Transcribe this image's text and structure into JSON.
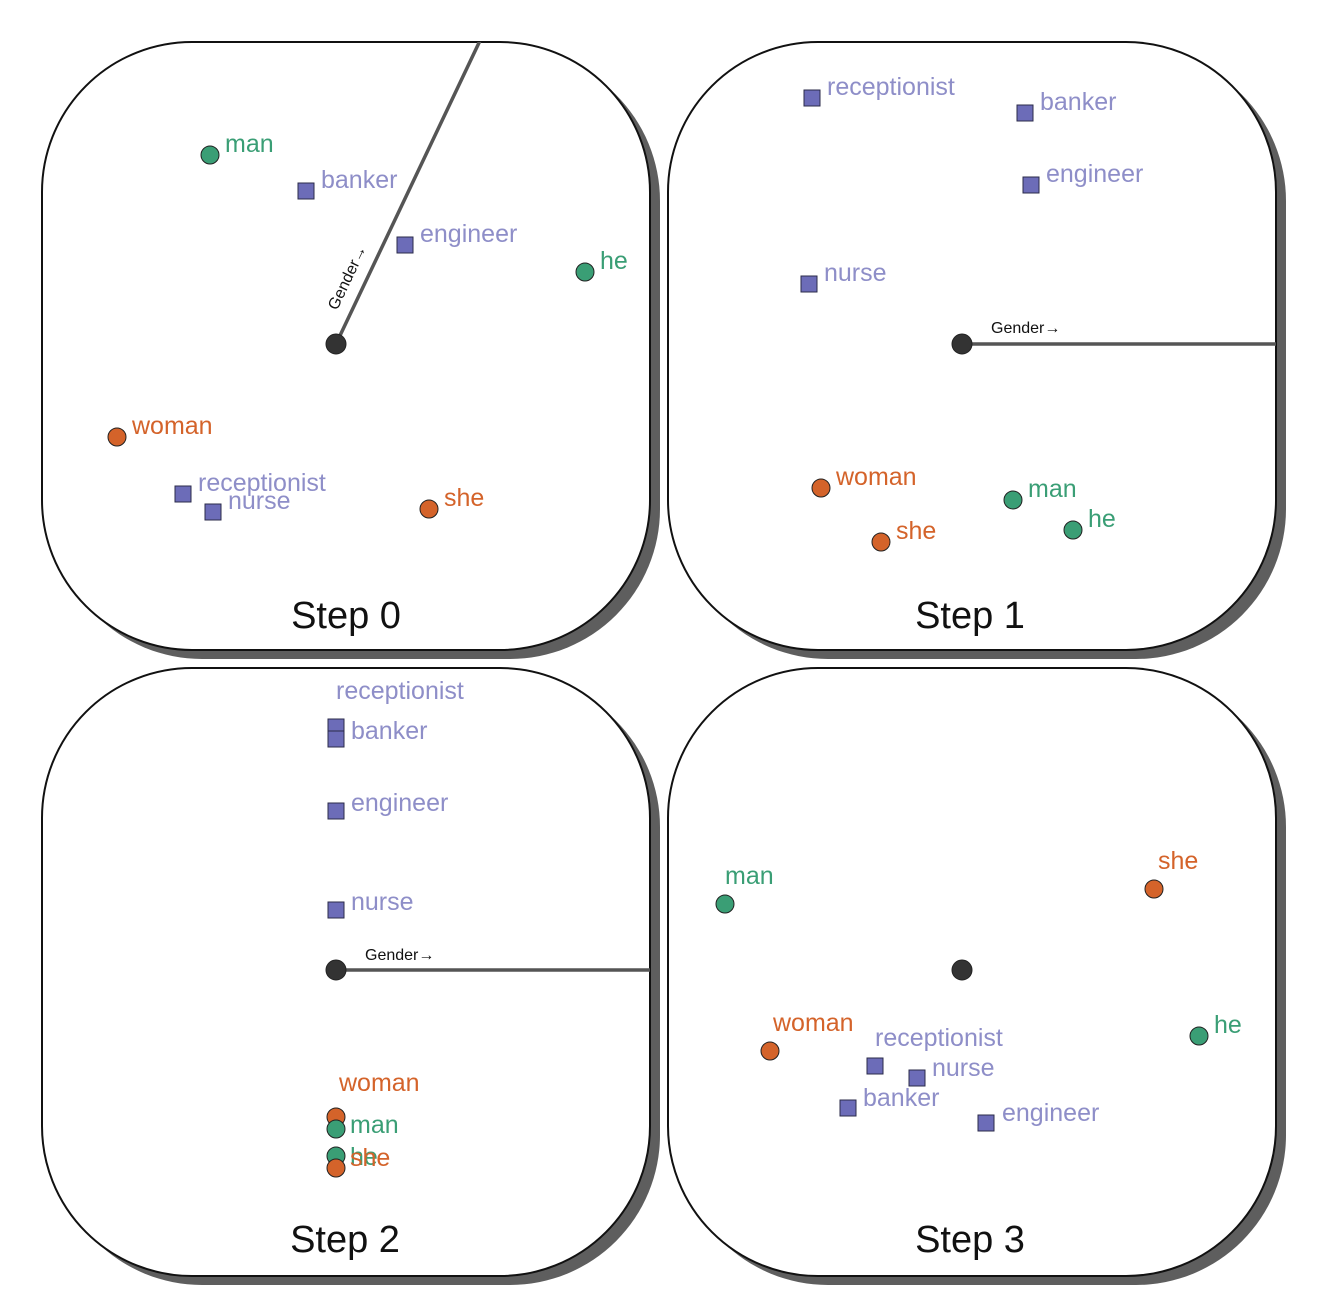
{
  "colors": {
    "male": "#3a9e75",
    "female": "#d4632a",
    "occupation": "#6c6cb8",
    "occupation_text": "#8e8ec8",
    "origin": "#333333",
    "axis": "#555555"
  },
  "axis_label": "Gender→",
  "panels": [
    {
      "title": "Step 0",
      "axis_direction": "up-right",
      "points": [
        {
          "word": "man",
          "kind": "male",
          "x": -4.2,
          "y": 6.3
        },
        {
          "word": "banker",
          "kind": "occupation",
          "x": -1.0,
          "y": 5.1
        },
        {
          "word": "engineer",
          "kind": "occupation",
          "x": 2.3,
          "y": 3.3
        },
        {
          "word": "he",
          "kind": "male",
          "x": 8.3,
          "y": 2.4
        },
        {
          "word": "woman",
          "kind": "female",
          "x": -7.3,
          "y": -3.1
        },
        {
          "word": "receptionist",
          "kind": "occupation",
          "x": -5.1,
          "y": -5.0
        },
        {
          "word": "nurse",
          "kind": "occupation",
          "x": -4.1,
          "y": -5.6
        },
        {
          "word": "she",
          "kind": "female",
          "x": 3.1,
          "y": -5.5
        }
      ]
    },
    {
      "title": "Step 1",
      "axis_direction": "right",
      "points": [
        {
          "word": "receptionist",
          "kind": "occupation",
          "x": -5.0,
          "y": 8.2
        },
        {
          "word": "banker",
          "kind": "occupation",
          "x": 2.1,
          "y": 7.7
        },
        {
          "word": "engineer",
          "kind": "occupation",
          "x": 2.3,
          "y": 5.3
        },
        {
          "word": "nurse",
          "kind": "occupation",
          "x": -5.1,
          "y": 2.0
        },
        {
          "word": "woman",
          "kind": "female",
          "x": -4.7,
          "y": -4.8
        },
        {
          "word": "man",
          "kind": "male",
          "x": 1.7,
          "y": -5.2
        },
        {
          "word": "she",
          "kind": "female",
          "x": -2.7,
          "y": -6.6
        },
        {
          "word": "he",
          "kind": "male",
          "x": 3.7,
          "y": -6.2
        }
      ]
    },
    {
      "title": "Step 2",
      "axis_direction": "right",
      "points": [
        {
          "word": "receptionist",
          "kind": "occupation",
          "x": 0.0,
          "y": 8.1
        },
        {
          "word": "banker",
          "kind": "occupation",
          "x": 0.0,
          "y": 7.7
        },
        {
          "word": "engineer",
          "kind": "occupation",
          "x": 0.0,
          "y": 5.3
        },
        {
          "word": "nurse",
          "kind": "occupation",
          "x": 0.0,
          "y": 2.0
        },
        {
          "word": "woman",
          "kind": "female",
          "x": 0.0,
          "y": -4.9
        },
        {
          "word": "man",
          "kind": "male",
          "x": 0.0,
          "y": -5.3
        },
        {
          "word": "he",
          "kind": "male",
          "x": 0.0,
          "y": -6.2
        },
        {
          "word": "she",
          "kind": "female",
          "x": 0.0,
          "y": -6.6
        }
      ]
    },
    {
      "title": "Step 3",
      "axis_direction": "none",
      "points": [
        {
          "word": "man",
          "kind": "male",
          "x": -7.9,
          "y": 2.2
        },
        {
          "word": "she",
          "kind": "female",
          "x": 6.4,
          "y": 2.7
        },
        {
          "word": "woman",
          "kind": "female",
          "x": -6.4,
          "y": -2.7
        },
        {
          "word": "receptionist",
          "kind": "occupation",
          "x": -2.9,
          "y": -3.2
        },
        {
          "word": "he",
          "kind": "male",
          "x": 7.9,
          "y": -2.2
        },
        {
          "word": "nurse",
          "kind": "occupation",
          "x": -1.5,
          "y": -3.6
        },
        {
          "word": "banker",
          "kind": "occupation",
          "x": -3.8,
          "y": -4.6
        },
        {
          "word": "engineer",
          "kind": "occupation",
          "x": 0.8,
          "y": -5.1
        }
      ]
    }
  ]
}
